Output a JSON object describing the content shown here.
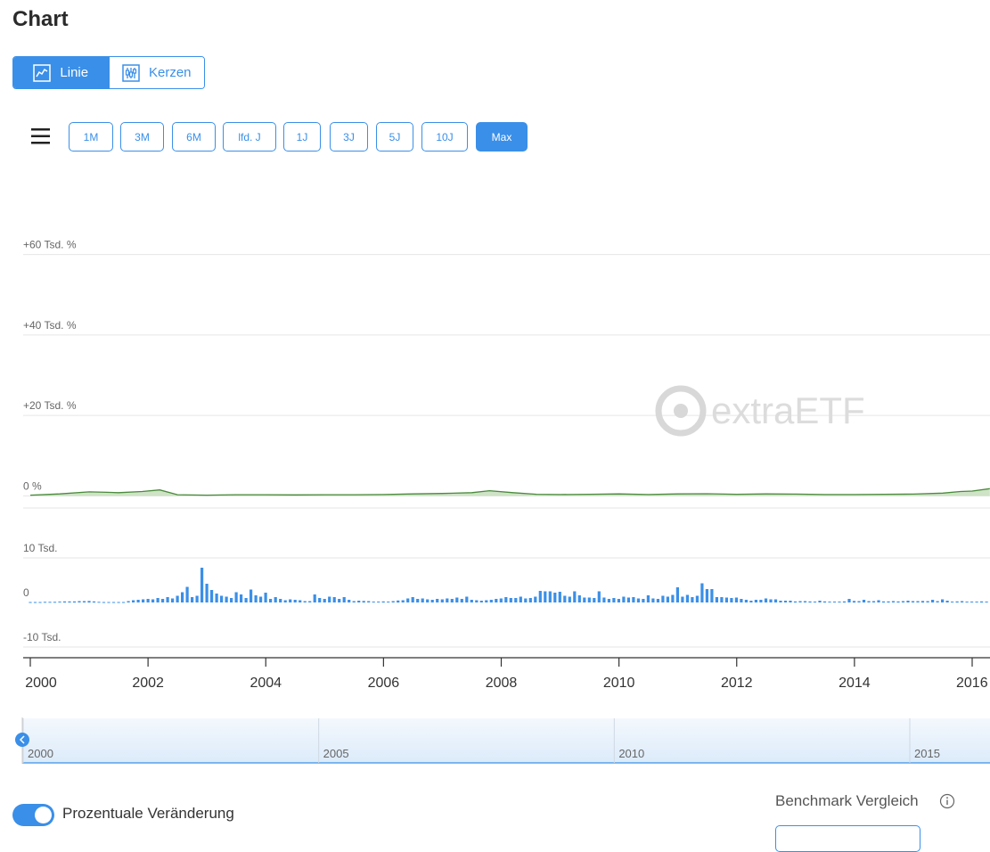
{
  "page": {
    "title": "Chart"
  },
  "chart_type_toggle": [
    {
      "label": "Linie",
      "icon": "line-chart-icon",
      "active": true
    },
    {
      "label": "Kerzen",
      "icon": "candlestick-icon",
      "active": false
    }
  ],
  "range_buttons": [
    {
      "label": "1M",
      "active": false
    },
    {
      "label": "3M",
      "active": false
    },
    {
      "label": "6M",
      "active": false
    },
    {
      "label": "lfd. J",
      "active": false
    },
    {
      "label": "1J",
      "active": false
    },
    {
      "label": "3J",
      "active": false
    },
    {
      "label": "5J",
      "active": false
    },
    {
      "label": "10J",
      "active": false
    },
    {
      "label": "Max",
      "active": true
    }
  ],
  "watermark": "extraETF",
  "colors": {
    "accent": "#3a8fe8",
    "line": "#4a8a3c",
    "area": "#cfe3c6",
    "volume": "#3a8fe8",
    "grid": "#e6e6e6"
  },
  "chart_data": [
    {
      "type": "area",
      "x": [
        2000.0,
        2000.5,
        2001.0,
        2001.3,
        2001.5,
        2001.9,
        2002.2,
        2002.5,
        2003.0,
        2003.5,
        2004.0,
        2004.5,
        2005.0,
        2005.5,
        2006.0,
        2006.5,
        2007.0,
        2007.5,
        2007.8,
        2008.2,
        2008.6,
        2009.0,
        2009.5,
        2010.0,
        2010.5,
        2011.0,
        2011.5,
        2012.0,
        2012.5,
        2013.0,
        2013.5,
        2014.0,
        2014.5,
        2015.0,
        2015.5,
        2015.8,
        2016.0,
        2016.3
      ],
      "values": [
        200,
        500,
        1000,
        900,
        800,
        1100,
        1500,
        300,
        200,
        300,
        300,
        250,
        300,
        300,
        350,
        500,
        600,
        800,
        1300,
        800,
        400,
        350,
        400,
        500,
        350,
        500,
        550,
        400,
        500,
        450,
        350,
        350,
        400,
        450,
        700,
        1100,
        1200,
        1800
      ],
      "ylim": [
        -3000,
        65000
      ],
      "y_ticks": [
        0,
        20000,
        40000,
        60000
      ],
      "y_tick_labels": [
        "0 %",
        "+20 Tsd. %",
        "+40 Tsd. %",
        "+60 Tsd. %"
      ],
      "grid": true
    },
    {
      "type": "bar",
      "name": "",
      "y_ticks": [
        -10000,
        0,
        10000
      ],
      "y_tick_labels": [
        "-10 Tsd.",
        "0",
        "10 Tsd."
      ],
      "ylim": [
        -10000,
        10000
      ],
      "x_start": 2000.0,
      "x_step": 0.0833,
      "values": [
        100,
        100,
        100,
        150,
        150,
        150,
        200,
        250,
        250,
        250,
        300,
        300,
        350,
        250,
        150,
        100,
        100,
        100,
        100,
        100,
        300,
        500,
        600,
        700,
        800,
        700,
        1000,
        800,
        1200,
        900,
        1500,
        2300,
        3500,
        1200,
        1500,
        7800,
        4200,
        2800,
        2000,
        1500,
        1300,
        1000,
        2300,
        1800,
        1000,
        2900,
        1600,
        1300,
        2200,
        800,
        1200,
        800,
        500,
        700,
        600,
        500,
        300,
        300,
        1800,
        1000,
        800,
        1300,
        1200,
        800,
        1200,
        600,
        300,
        400,
        350,
        300,
        200,
        200,
        250,
        200,
        300,
        450,
        500,
        900,
        1200,
        800,
        900,
        700,
        600,
        800,
        700,
        900,
        800,
        1100,
        800,
        1300,
        600,
        500,
        400,
        500,
        600,
        800,
        900,
        1200,
        1000,
        1000,
        1300,
        900,
        1000,
        1300,
        2600,
        2500,
        2500,
        2200,
        2400,
        1500,
        1300,
        2500,
        1600,
        1100,
        1100,
        1000,
        2500,
        1100,
        800,
        1000,
        800,
        1300,
        1100,
        1200,
        900,
        800,
        1600,
        900,
        800,
        1500,
        1300,
        1700,
        3400,
        1300,
        1700,
        1200,
        1500,
        4300,
        3000,
        3000,
        1200,
        1200,
        1100,
        1000,
        1100,
        800,
        600,
        400,
        600,
        600,
        900,
        700,
        700,
        400,
        400,
        400,
        250,
        300,
        300,
        250,
        200,
        400,
        250,
        200,
        200,
        200,
        250,
        800,
        350,
        300,
        600,
        300,
        300,
        500,
        250,
        250,
        300,
        250,
        300,
        400,
        300,
        300,
        350,
        300,
        600,
        300,
        700,
        400,
        200,
        250,
        300,
        200,
        200,
        200,
        250,
        200,
        300,
        200,
        200,
        200,
        400,
        400,
        200,
        200,
        200,
        200,
        200,
        200,
        200,
        200,
        200,
        400,
        500,
        900,
        700,
        300,
        600,
        500
      ],
      "grid": true
    },
    {
      "type": "area",
      "name": "navigator",
      "x_tick_labels": [
        "2000",
        "2005",
        "2010",
        "2015"
      ],
      "x_ticks": [
        2000,
        2005,
        2010,
        2015
      ]
    }
  ],
  "x_axis": {
    "ticks": [
      2000,
      2002,
      2004,
      2006,
      2008,
      2010,
      2012,
      2014,
      2016
    ],
    "tick_labels": [
      "2000",
      "2002",
      "2004",
      "2006",
      "2008",
      "2010",
      "2012",
      "2014",
      "2016"
    ],
    "xlim": [
      1999.8,
      2016.35
    ]
  },
  "toggle": {
    "label": "Prozentuale Veränderung",
    "on": true
  },
  "benchmark": {
    "label": "Benchmark Vergleich",
    "icon": "info-icon"
  }
}
